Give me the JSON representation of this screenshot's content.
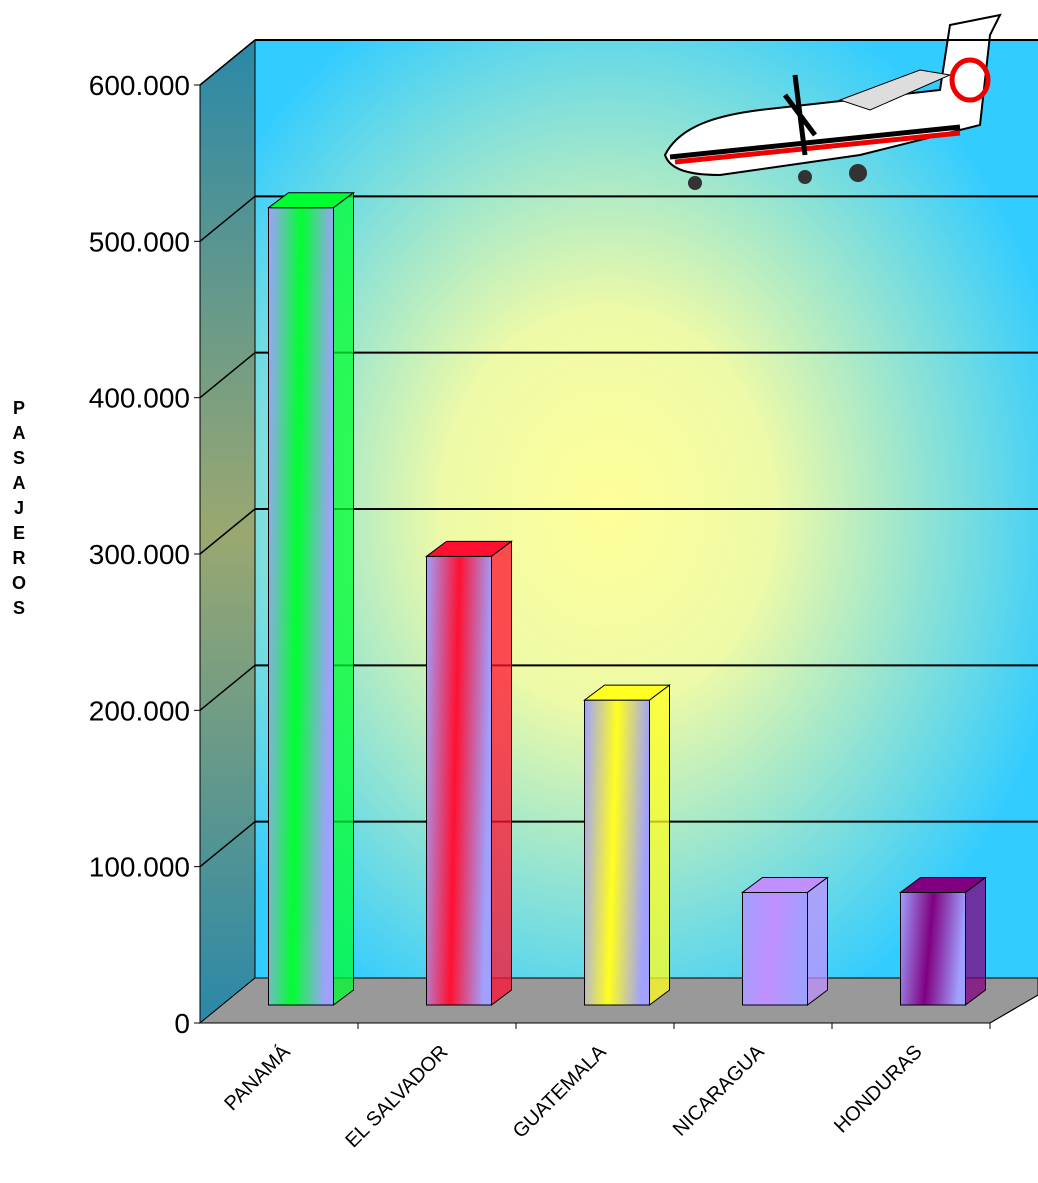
{
  "chart_data": {
    "type": "bar3d",
    "y_label": "PASAJEROS",
    "categories": [
      "PANAMÁ",
      "EL SALVADOR",
      "GUATEMALA",
      "NICARAGUA",
      "HONDURAS"
    ],
    "values": [
      510000,
      287000,
      195000,
      72000,
      72000
    ],
    "colors": [
      "#00ff30",
      "#ff1030",
      "#ffff20",
      "#c090ff",
      "#800080"
    ],
    "ylim": [
      0,
      600000
    ],
    "yticks": [
      0,
      {
        "value": 100000,
        "label": "100.000"
      },
      {
        "value": 200000,
        "label": "200.000"
      },
      {
        "value": 300000,
        "label": "300.000"
      },
      {
        "value": 400000,
        "label": "400.000"
      },
      {
        "value": 500000,
        "label": "500.000"
      },
      {
        "value": 600000,
        "label": "600.000"
      }
    ],
    "grid": true
  }
}
